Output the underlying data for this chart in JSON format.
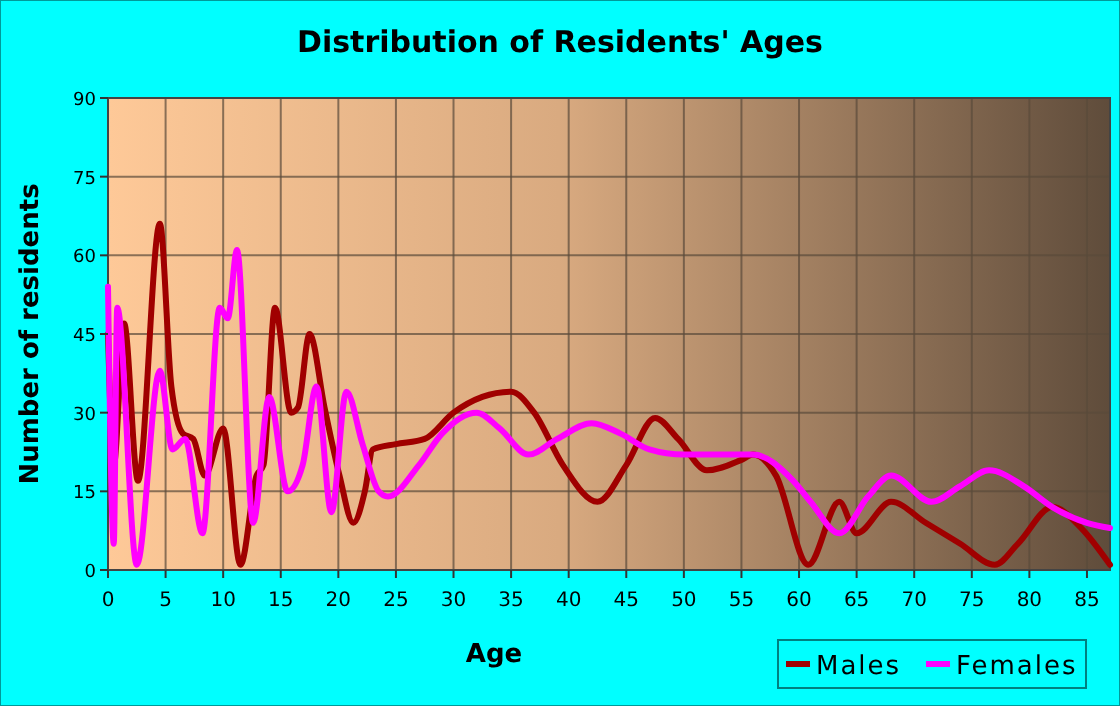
{
  "chart_data": {
    "type": "line",
    "title": "Distribution of Residents' Ages",
    "xlabel": "Age",
    "ylabel": "Number of residents",
    "xlim": [
      0,
      87
    ],
    "xticks": [
      0,
      5,
      10,
      15,
      20,
      25,
      30,
      35,
      40,
      45,
      50,
      55,
      60,
      65,
      70,
      75,
      80,
      85
    ],
    "ylim": [
      0,
      90
    ],
    "yticks": [
      0,
      15,
      30,
      45,
      60,
      75,
      90
    ],
    "grid": true,
    "legend": "bottom right",
    "line_style": "solid",
    "marker": "none",
    "series": [
      {
        "name": "Males",
        "color": "#a00000",
        "x": [
          0,
          0.5,
          1.4,
          2.6,
          4.5,
          5.5,
          6.5,
          7.4,
          8.4,
          10,
          11.5,
          12.9,
          13.5,
          14.5,
          15.9,
          16.5,
          17.5,
          18.8,
          20.1,
          21.3,
          22.3,
          23,
          25,
          27.5,
          30,
          32.5,
          35,
          37,
          39.5,
          42.5,
          45,
          47.5,
          49.5,
          52,
          55,
          56,
          58,
          60.8,
          63.5,
          65,
          68,
          71,
          74,
          77,
          79,
          82,
          84.5,
          87
        ],
        "values": [
          45,
          20,
          47,
          17,
          66,
          35,
          26,
          25,
          18,
          27,
          1,
          18,
          20,
          50,
          30,
          31,
          45,
          31,
          18,
          9,
          15,
          23,
          24,
          25,
          30,
          33,
          34,
          30,
          20,
          13,
          20,
          29,
          25,
          19,
          21,
          22,
          18,
          1,
          13,
          7,
          13,
          9,
          5,
          1,
          5,
          12,
          8,
          1
        ]
      },
      {
        "name": "Females",
        "color": "#ff00ff",
        "x": [
          0,
          0.5,
          0.8,
          2.5,
          4.5,
          5.6,
          6.7,
          8.2,
          9.7,
          10.4,
          11.2,
          12.6,
          14,
          15.6,
          16.9,
          18.1,
          19.4,
          20.7,
          22.1,
          23.5,
          24.3,
          27,
          29,
          32,
          34,
          36.5,
          39,
          42,
          44.5,
          47,
          50,
          55,
          56,
          59.5,
          61,
          63.5,
          66,
          68,
          71.5,
          74,
          76.5,
          79.5,
          82,
          85,
          87
        ],
        "values": [
          54,
          5,
          50,
          1,
          38,
          23,
          25,
          7,
          50,
          48,
          61,
          9,
          33,
          15,
          20,
          35,
          11,
          34,
          24,
          15,
          14,
          20,
          26,
          30,
          27,
          22,
          25,
          28,
          26,
          23,
          22,
          22,
          22,
          17,
          13,
          7,
          14,
          18,
          13,
          16,
          19,
          16,
          12,
          9,
          8
        ]
      }
    ]
  }
}
